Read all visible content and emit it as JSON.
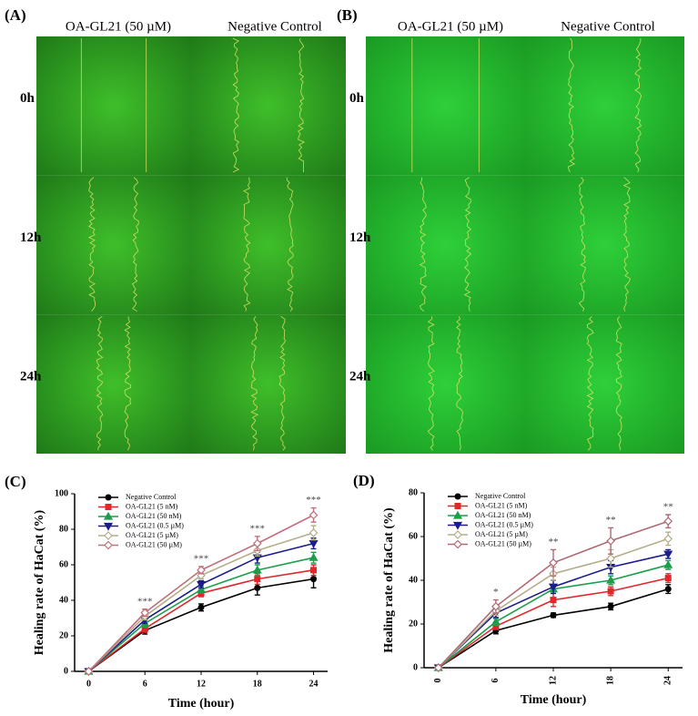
{
  "image_panels": [
    {
      "label": "(A)",
      "columns": [
        "OA-GL21 (50 µM)",
        "Negative Control"
      ],
      "rows": [
        "0h",
        "12h",
        "24h"
      ]
    },
    {
      "label": "(B)",
      "columns": [
        "OA-GL21 (50 µM)",
        "Negative Control"
      ],
      "rows": [
        "0h",
        "12h",
        "24h"
      ]
    }
  ],
  "chart_data": [
    {
      "type": "line",
      "panel_label": "(C)",
      "x_label": "Time (hour)",
      "y_label": "Healing rate of HaCat (%)",
      "x": [
        0,
        6,
        12,
        18,
        24
      ],
      "xlim": [
        -1.5,
        25.5
      ],
      "xticks": [
        0,
        6,
        12,
        18,
        24
      ],
      "ylim": [
        0,
        100
      ],
      "yticks": [
        0,
        20,
        40,
        60,
        80,
        100
      ],
      "legend": "upper left",
      "series": [
        {
          "name": "Negative Control",
          "color": "#000000",
          "marker": "circle",
          "values": [
            0,
            23,
            36,
            47,
            52
          ],
          "errors": [
            0,
            2,
            2,
            4,
            5
          ]
        },
        {
          "name": "OA-GL21 (5 nM)",
          "color": "#e3262b",
          "marker": "square",
          "values": [
            0,
            24,
            44,
            52,
            57
          ],
          "errors": [
            0,
            2,
            2,
            3,
            3
          ]
        },
        {
          "name": "OA-GL21 (50 nM)",
          "color": "#1a9e4a",
          "marker": "triangle-up",
          "values": [
            0,
            27,
            46,
            57,
            64
          ],
          "errors": [
            0,
            2,
            2,
            3,
            3
          ]
        },
        {
          "name": "OA-GL21 (0.5 µM)",
          "color": "#1c1c8c",
          "marker": "triangle-down",
          "values": [
            0,
            29,
            49,
            64,
            72
          ],
          "errors": [
            0,
            2,
            2,
            3,
            3
          ]
        },
        {
          "name": "OA-GL21 (5 µM)",
          "color": "#b5ae8a",
          "marker": "diamond",
          "values": [
            0,
            31,
            54,
            68,
            78
          ],
          "errors": [
            0,
            2,
            2,
            3,
            4
          ]
        },
        {
          "name": "OA-GL21 (50 µM)",
          "color": "#c0707c",
          "marker": "diamond",
          "values": [
            0,
            33,
            57,
            72,
            88
          ],
          "errors": [
            0,
            2,
            2,
            4,
            4
          ]
        }
      ],
      "annotations": [
        {
          "x": 6,
          "text": "***"
        },
        {
          "x": 12,
          "text": "***"
        },
        {
          "x": 18,
          "text": "***"
        },
        {
          "x": 24,
          "text": "***"
        }
      ]
    },
    {
      "type": "line",
      "panel_label": "(D)",
      "x_label": "Time (hour)",
      "y_label": "Healing rate of HaCat (%)",
      "x": [
        0,
        6,
        12,
        18,
        24
      ],
      "xlim": [
        -1.5,
        25.5
      ],
      "xticks": [
        0,
        6,
        12,
        18,
        24
      ],
      "ylim": [
        0,
        80
      ],
      "yticks": [
        0,
        20,
        40,
        60,
        80
      ],
      "legend": "upper left",
      "series": [
        {
          "name": "Negative Control",
          "color": "#000000",
          "marker": "circle",
          "values": [
            0,
            17,
            24,
            28,
            36
          ],
          "errors": [
            0,
            1.5,
            1,
            1.5,
            2
          ]
        },
        {
          "name": "OA-GL21 (5 nM)",
          "color": "#e3262b",
          "marker": "square",
          "values": [
            0,
            19,
            31,
            35,
            41
          ],
          "errors": [
            0,
            1.5,
            3,
            2,
            2
          ]
        },
        {
          "name": "OA-GL21 (50 nM)",
          "color": "#1a9e4a",
          "marker": "triangle-up",
          "values": [
            0,
            21,
            36,
            40,
            47
          ],
          "errors": [
            0,
            1.5,
            2,
            2,
            2
          ]
        },
        {
          "name": "OA-GL21 (0.5 µM)",
          "color": "#1c1c8c",
          "marker": "triangle-down",
          "values": [
            0,
            25,
            37,
            46,
            52
          ],
          "errors": [
            0,
            2,
            3,
            3,
            2
          ]
        },
        {
          "name": "OA-GL21 (5 µM)",
          "color": "#b5ae8a",
          "marker": "diamond",
          "values": [
            0,
            26,
            43,
            50,
            59
          ],
          "errors": [
            0,
            2,
            3,
            4,
            3
          ]
        },
        {
          "name": "OA-GL21 (50 µM)",
          "color": "#b06a74",
          "marker": "diamond",
          "values": [
            0,
            28,
            48,
            58,
            67
          ],
          "errors": [
            0,
            3,
            6,
            6,
            3
          ]
        }
      ],
      "annotations": [
        {
          "x": 6,
          "text": "*"
        },
        {
          "x": 12,
          "text": "**"
        },
        {
          "x": 18,
          "text": "**"
        },
        {
          "x": 24,
          "text": "**"
        }
      ]
    }
  ]
}
